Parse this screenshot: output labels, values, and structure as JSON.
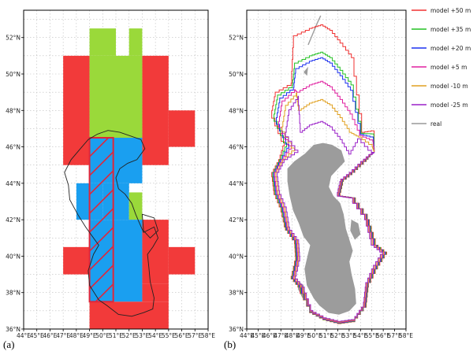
{
  "panel_a": {
    "label": "(a)",
    "lat_ticks": [
      "36°N",
      "38°N",
      "40°N",
      "42°N",
      "44°N",
      "46°N",
      "48°N",
      "50°N",
      "52°N"
    ],
    "lon_ticks": [
      "44°E",
      "45°E",
      "46°E",
      "47°E",
      "48°E",
      "49°E",
      "50°E",
      "51°E",
      "52°E",
      "53°E",
      "54°E",
      "55°E",
      "56°E",
      "57°E",
      "58°E"
    ],
    "lat_range": [
      36,
      53.5
    ],
    "lon_range": [
      44,
      58
    ],
    "colors": {
      "red": "#f23a3a",
      "green": "#9ad93a",
      "blue": "#1a9ff0",
      "outline": "#222222",
      "hatch": "#e0263a"
    }
  },
  "panel_b": {
    "label": "(b)",
    "lat_ticks": [
      "36°N",
      "38°N",
      "40°N",
      "42°N",
      "44°N",
      "46°N",
      "48°N",
      "50°N",
      "52°N"
    ],
    "lon_ticks": [
      "44°E",
      "45°E",
      "46°E",
      "47°E",
      "48°E",
      "49°E",
      "50°E",
      "51°E",
      "52°E",
      "53°E",
      "54°E",
      "55°E",
      "56°E",
      "57°E",
      "58°E"
    ],
    "lat_range": [
      36,
      53.5
    ],
    "lon_range": [
      44,
      58
    ],
    "legend": [
      {
        "label": "model +50 m",
        "color": "#f03030"
      },
      {
        "label": "model +35 m",
        "color": "#22c022"
      },
      {
        "label": "model +20 m",
        "color": "#1c30f0"
      },
      {
        "label": "model +5  m",
        "color": "#e020a0"
      },
      {
        "label": "model -10 m",
        "color": "#e0a020"
      },
      {
        "label": "model -25 m",
        "color": "#9a20c8"
      },
      {
        "label": "real",
        "color": "#999999"
      }
    ]
  }
}
